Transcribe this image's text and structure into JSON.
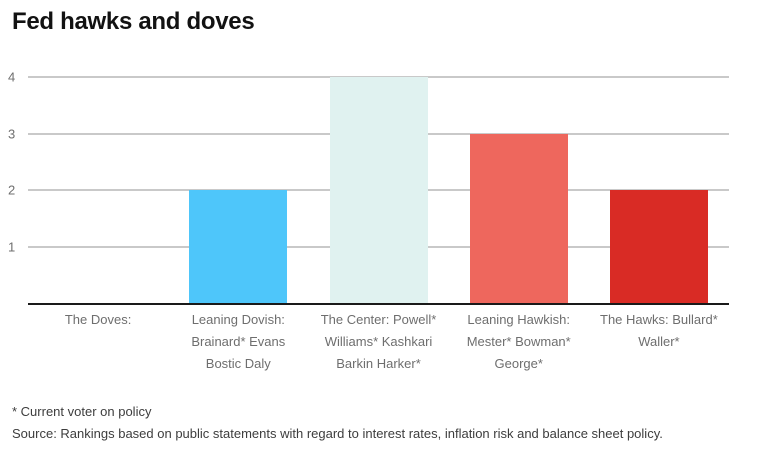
{
  "chart_data": {
    "type": "bar",
    "title": "Fed hawks and doves",
    "categories": [
      "The Doves:",
      "Leaning Dovish: Brainard* Evans Bostic Daly",
      "The Center: Powell* Williams* Kashkari Barkin Harker*",
      "Leaning Hawkish: Mester* Bowman* George*",
      "The Hawks: Bullard* Waller*"
    ],
    "values": [
      0,
      2,
      4,
      3,
      2
    ],
    "bar_colors": [
      null,
      "#4ec6fa",
      "#e0f2f0",
      "#ee675d",
      "#d92b25"
    ],
    "xlabel": "",
    "ylabel": "",
    "ylim": [
      0,
      4
    ],
    "yticks": [
      1,
      2,
      3,
      4
    ],
    "grid": true,
    "legend": false,
    "gridline_color": "#c9c9c9",
    "axis_line_color": "#1a1a1a"
  },
  "footer": {
    "note": "* Current voter on policy",
    "source": "Source: Rankings based on public statements with regard to interest rates, inflation risk and balance sheet policy."
  }
}
